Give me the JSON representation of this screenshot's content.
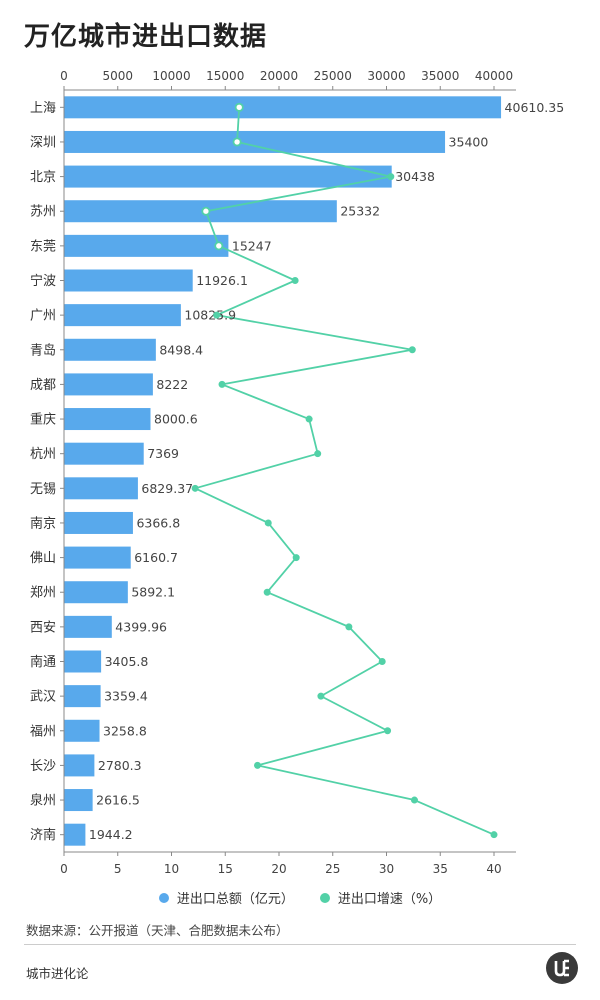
{
  "title": "万亿城市进出口数据",
  "legend": {
    "bar_label": "进出口总额（亿元）",
    "line_label": "进出口增速（%）"
  },
  "source": "数据来源：公开报道（天津、合肥数据未公布）",
  "brand": "城市进化论",
  "colors": {
    "bar": "#58a9ec",
    "line": "#52d1a7",
    "axis": "#888888",
    "grid": "#eeeeee"
  },
  "chart_data": {
    "type": "bar",
    "orientation": "horizontal",
    "categories": [
      "上海",
      "深圳",
      "北京",
      "苏州",
      "东莞",
      "宁波",
      "广州",
      "青岛",
      "成都",
      "重庆",
      "杭州",
      "无锡",
      "南京",
      "佛山",
      "郑州",
      "西安",
      "南通",
      "武汉",
      "福州",
      "长沙",
      "泉州",
      "济南"
    ],
    "bar_value_labels": [
      "40610.35",
      "35400",
      "30438",
      "25332",
      "15247",
      "11926.1",
      "10825.9",
      "8498.4",
      "8222",
      "8000.6",
      "7369",
      "6829.37",
      "6366.8",
      "6160.7",
      "5892.1",
      "4399.96",
      "3405.8",
      "3359.4",
      "3258.8",
      "2780.3",
      "2616.5",
      "1944.2"
    ],
    "series": [
      {
        "name": "进出口总额（亿元）",
        "type": "bar",
        "axis": "top",
        "values": [
          40610.35,
          35400,
          30438,
          25332,
          15247,
          11926.1,
          10825.9,
          8498.4,
          8222,
          8000.6,
          7369,
          6829.37,
          6366.8,
          6160.7,
          5892.1,
          4399.96,
          3405.8,
          3359.4,
          3258.8,
          2780.3,
          2616.5,
          1944.2
        ]
      },
      {
        "name": "进出口增速（%）",
        "type": "line",
        "axis": "bottom",
        "values": [
          16.3,
          16.1,
          30.4,
          13.2,
          14.4,
          21.5,
          14.2,
          32.4,
          14.7,
          22.8,
          23.6,
          12.2,
          19.0,
          21.6,
          18.9,
          26.5,
          29.6,
          23.9,
          30.1,
          18.0,
          32.6,
          40.0
        ]
      }
    ],
    "top_axis": {
      "min": 0,
      "max": 40000,
      "ticks": [
        "0",
        "5000",
        "10000",
        "15000",
        "20000",
        "25000",
        "30000",
        "35000",
        "40000"
      ]
    },
    "bottom_axis": {
      "min": 0,
      "max": 40,
      "ticks": [
        "0",
        "5",
        "10",
        "15",
        "20",
        "25",
        "30",
        "35",
        "40"
      ]
    },
    "legend_position": "bottom",
    "grid": false
  }
}
